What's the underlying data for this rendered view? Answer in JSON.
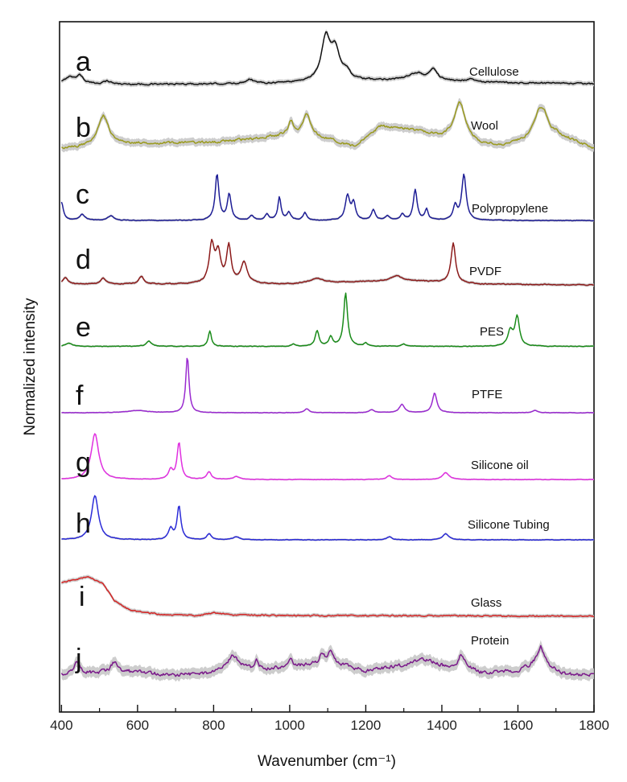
{
  "chart_data": {
    "type": "line",
    "xlabel": "Wavenumber (cm⁻¹)",
    "ylabel": "Normalized intensity",
    "xlim": [
      395,
      1800
    ],
    "xticks": [
      400,
      600,
      800,
      1000,
      1200,
      1400,
      1600,
      1800
    ],
    "grid": false,
    "legend": "none",
    "band_color": "#c8c8c8",
    "series": [
      {
        "letter": "a",
        "name": "Cellulose",
        "color": "#111111",
        "noise": 0.8,
        "baseline": [
          [
            400,
            3
          ],
          [
            500,
            3
          ],
          [
            900,
            4
          ],
          [
            1200,
            8
          ],
          [
            1320,
            10
          ],
          [
            1500,
            6
          ],
          [
            1800,
            4
          ]
        ],
        "peaks": [
          [
            420,
            9,
            15
          ],
          [
            448,
            11,
            12
          ],
          [
            520,
            4,
            15
          ],
          [
            895,
            6,
            12
          ],
          [
            1095,
            55,
            14
          ],
          [
            1120,
            38,
            14
          ],
          [
            1150,
            10,
            12
          ],
          [
            1335,
            8,
            20
          ],
          [
            1378,
            14,
            12
          ],
          [
            1475,
            4,
            12
          ]
        ],
        "band": 3
      },
      {
        "letter": "b",
        "name": "Wool",
        "color": "#9a9a1e",
        "noise": 1.3,
        "baseline": [
          [
            400,
            5
          ],
          [
            600,
            12
          ],
          [
            800,
            14
          ],
          [
            900,
            18
          ],
          [
            1000,
            24
          ],
          [
            1100,
            18
          ],
          [
            1170,
            8
          ],
          [
            1240,
            35
          ],
          [
            1320,
            30
          ],
          [
            1400,
            22
          ],
          [
            1440,
            28
          ],
          [
            1500,
            12
          ],
          [
            1560,
            10
          ],
          [
            1600,
            14
          ],
          [
            1700,
            24
          ],
          [
            1800,
            6
          ]
        ],
        "peaks": [
          [
            510,
            40,
            18
          ],
          [
            1003,
            16,
            8
          ],
          [
            1045,
            30,
            12
          ],
          [
            1448,
            40,
            15
          ],
          [
            1655,
            30,
            16
          ],
          [
            1670,
            20,
            12
          ]
        ],
        "band": 5
      },
      {
        "letter": "c",
        "name": "Polypropylene",
        "color": "#1e1e96",
        "noise": 0.35,
        "baseline": [
          [
            400,
            2
          ],
          [
            1800,
            2
          ]
        ],
        "peaks": [
          [
            400,
            24,
            6
          ],
          [
            455,
            8,
            8
          ],
          [
            530,
            6,
            10
          ],
          [
            809,
            60,
            6
          ],
          [
            841,
            34,
            6
          ],
          [
            900,
            6,
            6
          ],
          [
            940,
            8,
            6
          ],
          [
            973,
            30,
            5
          ],
          [
            998,
            10,
            6
          ],
          [
            1040,
            10,
            6
          ],
          [
            1152,
            32,
            7
          ],
          [
            1168,
            22,
            6
          ],
          [
            1220,
            14,
            6
          ],
          [
            1257,
            6,
            6
          ],
          [
            1296,
            8,
            6
          ],
          [
            1330,
            40,
            6
          ],
          [
            1360,
            14,
            5
          ],
          [
            1435,
            18,
            6
          ],
          [
            1458,
            60,
            7
          ]
        ],
        "band": 1.5
      },
      {
        "letter": "d",
        "name": "PVDF",
        "color": "#8c1a1a",
        "noise": 0.5,
        "baseline": [
          [
            400,
            4
          ],
          [
            1000,
            4
          ],
          [
            1100,
            6
          ],
          [
            1300,
            9
          ],
          [
            1500,
            4
          ],
          [
            1800,
            3
          ]
        ],
        "peaks": [
          [
            410,
            8,
            8
          ],
          [
            510,
            8,
            8
          ],
          [
            610,
            10,
            8
          ],
          [
            795,
            50,
            8
          ],
          [
            812,
            38,
            8
          ],
          [
            840,
            48,
            7
          ],
          [
            880,
            28,
            10
          ],
          [
            1070,
            6,
            20
          ],
          [
            1280,
            6,
            15
          ],
          [
            1430,
            52,
            7
          ]
        ],
        "band": 2
      },
      {
        "letter": "e",
        "name": "PES",
        "color": "#1a8c1a",
        "noise": 0.35,
        "baseline": [
          [
            400,
            1.5
          ],
          [
            1800,
            1.5
          ]
        ],
        "peaks": [
          [
            420,
            4,
            10
          ],
          [
            630,
            7,
            8
          ],
          [
            790,
            20,
            5
          ],
          [
            1010,
            3,
            6
          ],
          [
            1072,
            20,
            6
          ],
          [
            1108,
            12,
            6
          ],
          [
            1147,
            70,
            6
          ],
          [
            1200,
            4,
            6
          ],
          [
            1300,
            3,
            6
          ],
          [
            1580,
            20,
            8
          ],
          [
            1598,
            38,
            7
          ]
        ],
        "band": 1.2
      },
      {
        "letter": "f",
        "name": "PTFE",
        "color": "#9a2bd0",
        "noise": 0.25,
        "baseline": [
          [
            400,
            1
          ],
          [
            1800,
            1
          ]
        ],
        "peaks": [
          [
            600,
            3,
            30
          ],
          [
            731,
            74,
            5
          ],
          [
            1045,
            5,
            7
          ],
          [
            1215,
            4,
            8
          ],
          [
            1295,
            11,
            8
          ],
          [
            1381,
            26,
            7
          ],
          [
            1645,
            3,
            8
          ]
        ],
        "band": 1.0
      },
      {
        "letter": "g",
        "name": "Silicone oil",
        "color": "#e030e0",
        "noise": 0.25,
        "baseline": [
          [
            400,
            1
          ],
          [
            1800,
            1
          ]
        ],
        "peaks": [
          [
            488,
            60,
            12
          ],
          [
            687,
            12,
            7
          ],
          [
            709,
            48,
            6
          ],
          [
            788,
            10,
            7
          ],
          [
            860,
            4,
            10
          ],
          [
            1262,
            5,
            8
          ],
          [
            1410,
            9,
            10
          ]
        ],
        "band": 1.0
      },
      {
        "letter": "h",
        "name": "Silicone Tubing",
        "color": "#2b2bd8",
        "noise": 0.3,
        "baseline": [
          [
            400,
            1
          ],
          [
            1800,
            1
          ]
        ],
        "peaks": [
          [
            488,
            58,
            11
          ],
          [
            687,
            14,
            7
          ],
          [
            709,
            44,
            6
          ],
          [
            788,
            8,
            7
          ],
          [
            860,
            4,
            10
          ],
          [
            1262,
            4,
            8
          ],
          [
            1410,
            8,
            10
          ]
        ],
        "band": 1.3
      },
      {
        "letter": "i",
        "name": "Glass",
        "color": "#d42424",
        "noise": 0.7,
        "baseline": [
          [
            400,
            46
          ],
          [
            470,
            54
          ],
          [
            510,
            44
          ],
          [
            540,
            22
          ],
          [
            580,
            10
          ],
          [
            650,
            5
          ],
          [
            700,
            4
          ],
          [
            760,
            3
          ],
          [
            800,
            7
          ],
          [
            850,
            4
          ],
          [
            1000,
            3
          ],
          [
            1100,
            3
          ],
          [
            1300,
            3
          ],
          [
            1800,
            2
          ]
        ],
        "peaks": [],
        "band": 2.5
      },
      {
        "letter": "j",
        "name": "Protein",
        "color": "#7a1a8a",
        "noise": 2.0,
        "baseline": [
          [
            400,
            10
          ],
          [
            600,
            12
          ],
          [
            700,
            8
          ],
          [
            800,
            12
          ],
          [
            850,
            25
          ],
          [
            900,
            16
          ],
          [
            1000,
            18
          ],
          [
            1100,
            26
          ],
          [
            1200,
            14
          ],
          [
            1300,
            22
          ],
          [
            1350,
            30
          ],
          [
            1420,
            18
          ],
          [
            1460,
            22
          ],
          [
            1500,
            12
          ],
          [
            1600,
            14
          ],
          [
            1660,
            26
          ],
          [
            1720,
            10
          ],
          [
            1800,
            8
          ]
        ],
        "peaks": [
          [
            440,
            14,
            10
          ],
          [
            540,
            14,
            12
          ],
          [
            850,
            10,
            12
          ],
          [
            912,
            12,
            6
          ],
          [
            1003,
            14,
            6
          ],
          [
            1085,
            10,
            8
          ],
          [
            1108,
            14,
            8
          ],
          [
            1450,
            14,
            8
          ],
          [
            1660,
            20,
            10
          ]
        ],
        "band": 7
      }
    ]
  }
}
